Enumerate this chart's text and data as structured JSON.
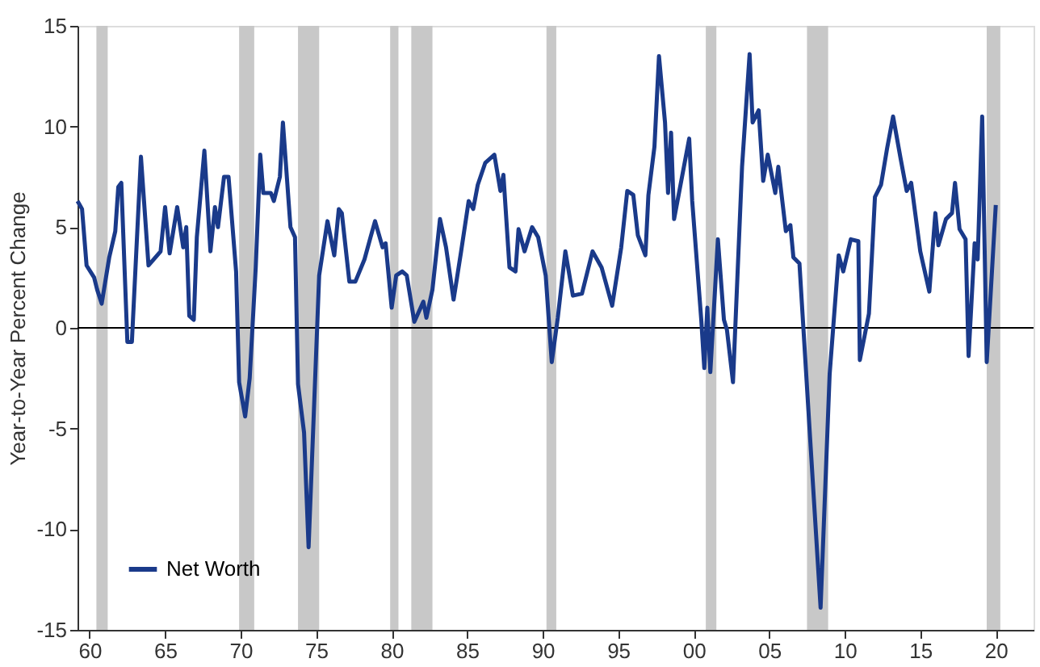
{
  "chart_data": {
    "type": "line",
    "ylabel": "Year-to-Year Percent Change",
    "xlim": [
      1959.2,
      2022.5
    ],
    "ylim": [
      -15,
      15
    ],
    "yticks": [
      -15,
      -10,
      -5,
      0,
      5,
      10,
      15
    ],
    "xticks": [
      {
        "value": 1960,
        "label": "60"
      },
      {
        "value": 1965,
        "label": "65"
      },
      {
        "value": 1970,
        "label": "70"
      },
      {
        "value": 1975,
        "label": "75"
      },
      {
        "value": 1980,
        "label": "80"
      },
      {
        "value": 1985,
        "label": "85"
      },
      {
        "value": 1990,
        "label": "90"
      },
      {
        "value": 1995,
        "label": "95"
      },
      {
        "value": 2000,
        "label": "00"
      },
      {
        "value": 2005,
        "label": "05"
      },
      {
        "value": 2010,
        "label": "10"
      },
      {
        "value": 2015,
        "label": "15"
      },
      {
        "value": 2020,
        "label": "20"
      }
    ],
    "grid": false,
    "legend": "bottom left",
    "line_style": "solid",
    "series": [
      {
        "name": "Net Worth",
        "color": "#1a3a8a",
        "x": [
          1959.2,
          1959.5,
          1959.8,
          1960.3,
          1960.5,
          1960.8,
          1961.3,
          1961.7,
          1961.9,
          1962.1,
          1962.5,
          1962.8,
          1963.4,
          1963.9,
          1964.7,
          1965.0,
          1965.3,
          1965.8,
          1966.2,
          1966.4,
          1966.6,
          1966.9,
          1967.1,
          1967.6,
          1968.0,
          1968.3,
          1968.5,
          1968.9,
          1969.2,
          1969.7,
          1969.9,
          1970.3,
          1970.6,
          1971.0,
          1971.3,
          1971.5,
          1972.0,
          1972.2,
          1972.6,
          1972.8,
          1973.3,
          1973.6,
          1973.8,
          1974.2,
          1974.5,
          1975.2,
          1975.75,
          1976.2,
          1976.5,
          1976.7,
          1977.2,
          1977.6,
          1978.2,
          1978.6,
          1978.9,
          1979.4,
          1979.6,
          1980.0,
          1980.3,
          1980.7,
          1981.0,
          1981.5,
          1981.8,
          1982.1,
          1982.3,
          1982.7,
          1983.2,
          1983.6,
          1984.1,
          1984.6,
          1985.1,
          1985.4,
          1985.7,
          1986.2,
          1986.8,
          1987.2,
          1987.4,
          1987.8,
          1988.2,
          1988.4,
          1988.8,
          1989.3,
          1989.7,
          1990.2,
          1990.6,
          1991.0,
          1991.5,
          1992.0,
          1992.6,
          1993.3,
          1993.9,
          1994.6,
          1995.2,
          1995.6,
          1996.0,
          1996.3,
          1996.8,
          1997.0,
          1997.4,
          1997.7,
          1998.1,
          1998.3,
          1998.5,
          1998.7,
          1999.2,
          1999.7,
          1999.9,
          2000.5,
          2000.7,
          2000.9,
          2001.1,
          2001.6,
          2002.0,
          2002.2,
          2002.6,
          2003.2,
          2003.7,
          2003.9,
          2004.3,
          2004.6,
          2004.9,
          2005.4,
          2005.6,
          2006.1,
          2006.4,
          2006.6,
          2007.0,
          2007.7,
          2008.4,
          2009.0,
          2009.6,
          2009.9,
          2010.4,
          2010.9,
          2011.0,
          2011.6,
          2012.0,
          2012.4,
          2012.8,
          2013.2,
          2013.7,
          2014.1,
          2014.4,
          2015.0,
          2015.6,
          2016.0,
          2016.2,
          2016.7,
          2017.1,
          2017.3,
          2017.6,
          2018.0,
          2018.2,
          2018.6,
          2018.8,
          2019.1,
          2019.4,
          2020.0
        ],
        "values": [
          6.3,
          5.9,
          3.1,
          2.5,
          1.9,
          1.2,
          3.5,
          4.8,
          7.0,
          7.2,
          -0.7,
          -0.7,
          8.5,
          3.1,
          3.8,
          6.0,
          3.7,
          6.0,
          4.0,
          5.0,
          0.6,
          0.4,
          4.5,
          8.8,
          3.8,
          6.0,
          5.0,
          7.5,
          7.5,
          2.8,
          -2.7,
          -4.4,
          -2.5,
          3.0,
          8.6,
          6.7,
          6.7,
          6.3,
          7.5,
          10.2,
          5.0,
          4.5,
          -2.8,
          -5.2,
          -10.9,
          2.6,
          5.3,
          3.6,
          5.9,
          5.7,
          2.3,
          2.3,
          3.4,
          4.5,
          5.3,
          4.0,
          4.2,
          1.0,
          2.6,
          2.8,
          2.6,
          0.3,
          0.8,
          1.3,
          0.5,
          1.9,
          5.4,
          4.0,
          1.4,
          3.8,
          6.3,
          5.9,
          7.1,
          8.2,
          8.6,
          6.8,
          7.6,
          3.0,
          2.8,
          4.9,
          3.8,
          5.0,
          4.5,
          2.6,
          -1.7,
          0.5,
          3.8,
          1.6,
          1.7,
          3.8,
          3.0,
          1.1,
          4.0,
          6.8,
          6.6,
          4.6,
          3.6,
          6.6,
          9.0,
          13.5,
          10.2,
          6.7,
          9.7,
          5.4,
          7.4,
          9.4,
          6.3,
          0.4,
          -2.0,
          1.0,
          -2.2,
          4.4,
          0.4,
          -0.1,
          -2.7,
          8.0,
          13.6,
          10.2,
          10.8,
          7.3,
          8.6,
          6.7,
          8.0,
          4.8,
          5.1,
          3.5,
          3.2,
          -5.4,
          -13.9,
          -2.3,
          3.6,
          2.8,
          4.4,
          4.3,
          -1.6,
          0.7,
          6.5,
          7.1,
          8.9,
          10.5,
          8.4,
          6.8,
          7.2,
          3.8,
          1.8,
          5.7,
          4.1,
          5.4,
          5.7,
          7.2,
          4.9,
          4.4,
          -1.4,
          4.2,
          3.4,
          10.5,
          -1.7,
          6.1
        ]
      }
    ],
    "ref_lines": [
      {
        "axis": "y",
        "value": 0,
        "color": "#000000"
      }
    ],
    "bands": [
      {
        "axis": "x",
        "from": 1960.45,
        "to": 1961.2,
        "color": "#c8c8c8"
      },
      {
        "axis": "x",
        "from": 1969.9,
        "to": 1970.9,
        "color": "#c8c8c8"
      },
      {
        "axis": "x",
        "from": 1973.8,
        "to": 1975.2,
        "color": "#c8c8c8"
      },
      {
        "axis": "x",
        "from": 1979.9,
        "to": 1980.45,
        "color": "#c8c8c8"
      },
      {
        "axis": "x",
        "from": 1981.3,
        "to": 1982.7,
        "color": "#c8c8c8"
      },
      {
        "axis": "x",
        "from": 1990.25,
        "to": 1990.9,
        "color": "#c8c8c8"
      },
      {
        "axis": "x",
        "from": 2000.8,
        "to": 2001.5,
        "color": "#c8c8c8"
      },
      {
        "axis": "x",
        "from": 2007.5,
        "to": 2008.9,
        "color": "#c8c8c8"
      },
      {
        "axis": "x",
        "from": 2019.4,
        "to": 2020.3,
        "color": "#c8c8c8"
      }
    ]
  }
}
